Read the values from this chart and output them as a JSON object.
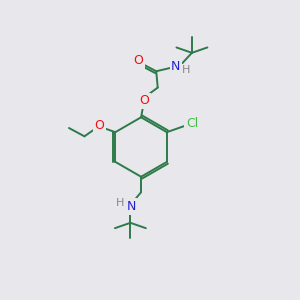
{
  "bg_color": "#e8e8ec",
  "bond_color": "#2d7a4a",
  "atom_colors": {
    "O": "#ee1111",
    "N": "#2222cc",
    "Cl": "#44bb44",
    "H": "#888888",
    "C": "#2d7a4a"
  },
  "fig_size": [
    3.0,
    3.0
  ],
  "dpi": 100,
  "lw": 1.4,
  "fontsize": 8.5
}
